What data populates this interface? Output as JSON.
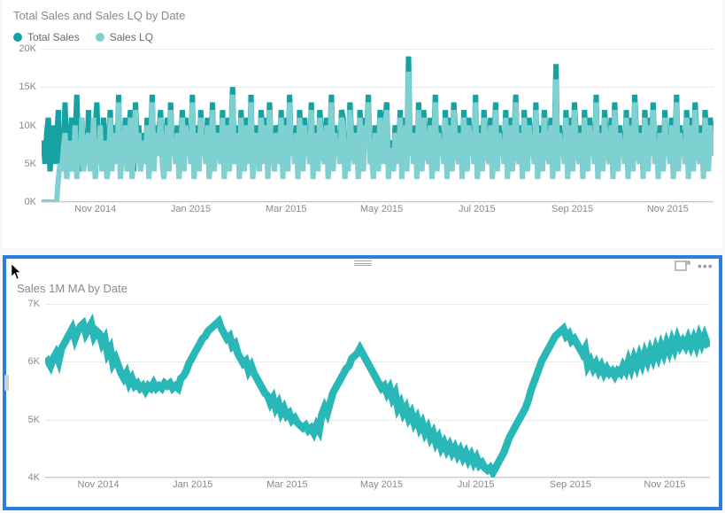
{
  "topChart": {
    "type": "line",
    "title": "Total Sales and Sales LQ by Date",
    "title_fontsize": 13,
    "title_color": "#8a8a88",
    "background_color": "#ffffff",
    "grid_color": "#d7d7d3",
    "axis_color": "#c9c9c6",
    "label_fontsize": 11,
    "label_color": "#8a8a88",
    "legend": [
      {
        "label": "Total Sales",
        "color": "#16a2a2"
      },
      {
        "label": "Sales LQ",
        "color": "#7fd0d0"
      }
    ],
    "xTicks": [
      "Nov 2014",
      "Jan 2015",
      "Mar 2015",
      "May 2015",
      "Jul 2015",
      "Sep 2015",
      "Nov 2015"
    ],
    "xTickPositions": [
      0.08,
      0.222,
      0.364,
      0.506,
      0.648,
      0.79,
      0.932
    ],
    "yTicks": [
      "0K",
      "5K",
      "10K",
      "15K",
      "20K"
    ],
    "ylim": [
      0,
      20
    ],
    "series": [
      {
        "name": "Total Sales",
        "color": "#16a2a2",
        "line_width": 1,
        "values": [
          6,
          8,
          5,
          9,
          11,
          4,
          7,
          10,
          5,
          8,
          12,
          4,
          9,
          6,
          13,
          5,
          7,
          9,
          11,
          5,
          8,
          14,
          6,
          4,
          11,
          7,
          9,
          5,
          12,
          6,
          8,
          4,
          10,
          13,
          5,
          9,
          7,
          11,
          6,
          4,
          8,
          12,
          5,
          9,
          10,
          6,
          14,
          4,
          8,
          7,
          11,
          5,
          9,
          12,
          6,
          4,
          13,
          8,
          10,
          5,
          7,
          9,
          6,
          11,
          4,
          8,
          14,
          5,
          10,
          7,
          9,
          12,
          6,
          4,
          8,
          11,
          5,
          13,
          7,
          9,
          6,
          10,
          4,
          8,
          12,
          5,
          11,
          7,
          9,
          6,
          14,
          4,
          8,
          10,
          5,
          12,
          7,
          9,
          6,
          11,
          4,
          8,
          13,
          5,
          9,
          10,
          7,
          6,
          12,
          4,
          8,
          11,
          5,
          9,
          15,
          6,
          7,
          10,
          4,
          12,
          8,
          5,
          11,
          9,
          6,
          14,
          4,
          7,
          10,
          8,
          5,
          12,
          9,
          6,
          11,
          4,
          13,
          8,
          7,
          5,
          10,
          9,
          6,
          12,
          4,
          11,
          8,
          5,
          14,
          7,
          9,
          6,
          10,
          4,
          12,
          8,
          5,
          11,
          7,
          9,
          6,
          13,
          4,
          8,
          10,
          5,
          12,
          9,
          7,
          6,
          11,
          4,
          8,
          14,
          5,
          10,
          7,
          9,
          6,
          12,
          11,
          4,
          8,
          5,
          13,
          9,
          7,
          6,
          10,
          4,
          12,
          8,
          5,
          11,
          9,
          14,
          6,
          7,
          4,
          10,
          8,
          5,
          12,
          9,
          6,
          11,
          13,
          4,
          8,
          7,
          5,
          10,
          9,
          6,
          12,
          4,
          11,
          8,
          5,
          19,
          7,
          9,
          6,
          10,
          4,
          13,
          8,
          5,
          12,
          9,
          7,
          6,
          11,
          4,
          8,
          14,
          5,
          10,
          7,
          9,
          6,
          12,
          4,
          11,
          8,
          5,
          13,
          9,
          7,
          6,
          10,
          4,
          12,
          8,
          5,
          11,
          7,
          9,
          6,
          14,
          4,
          8,
          10,
          5,
          12,
          9,
          7,
          6,
          11,
          4,
          8,
          13,
          5,
          10,
          7,
          9,
          6,
          12,
          4,
          8,
          11,
          5,
          9,
          14,
          7,
          6,
          10,
          4,
          12,
          8,
          5,
          11,
          7,
          9,
          6,
          13,
          4,
          8,
          10,
          5,
          12,
          9,
          7,
          6,
          11,
          4,
          8,
          18,
          5,
          10,
          7,
          9,
          6,
          12,
          4,
          11,
          8,
          5,
          13,
          9,
          7,
          6,
          10,
          4,
          12,
          8,
          5,
          11,
          7,
          9,
          6,
          14,
          4,
          8,
          10,
          5,
          12,
          9,
          7,
          6,
          11,
          4,
          13,
          8,
          5,
          10,
          7,
          9,
          6,
          12,
          4,
          11,
          8,
          5,
          14,
          9,
          7,
          6,
          10,
          4,
          12,
          8,
          5,
          11,
          7,
          13,
          6,
          9,
          4,
          10,
          8,
          5,
          12,
          7,
          9,
          6,
          11,
          4,
          8,
          14,
          5,
          10,
          7,
          9,
          6,
          12,
          4,
          11,
          8,
          5,
          13,
          9,
          7,
          6,
          10,
          4,
          12,
          8,
          5,
          11,
          9,
          7
        ]
      },
      {
        "name": "Sales LQ",
        "color": "#7fd0d0",
        "line_width": 1,
        "values": [
          0,
          0,
          0,
          0,
          0,
          0,
          0,
          0,
          0,
          0,
          3,
          5,
          4,
          7,
          9,
          3,
          6,
          8,
          4,
          5,
          10,
          3,
          7,
          5,
          11,
          4,
          6,
          8,
          9,
          4,
          6,
          11,
          3,
          7,
          5,
          10,
          4,
          6,
          8,
          3,
          5,
          11,
          4,
          9,
          7,
          5,
          13,
          3,
          6,
          8,
          10,
          4,
          5,
          11,
          3,
          7,
          12,
          5,
          9,
          4,
          6,
          8,
          5,
          10,
          3,
          7,
          13,
          4,
          9,
          6,
          8,
          11,
          5,
          3,
          7,
          10,
          4,
          12,
          6,
          8,
          5,
          9,
          3,
          7,
          11,
          4,
          10,
          6,
          8,
          5,
          13,
          3,
          7,
          9,
          4,
          11,
          6,
          8,
          5,
          10,
          3,
          7,
          12,
          4,
          8,
          9,
          6,
          5,
          11,
          3,
          7,
          10,
          4,
          8,
          14,
          5,
          6,
          9,
          3,
          11,
          7,
          4,
          10,
          8,
          5,
          13,
          3,
          6,
          9,
          7,
          4,
          11,
          8,
          5,
          10,
          3,
          12,
          7,
          6,
          4,
          9,
          8,
          5,
          11,
          3,
          10,
          7,
          4,
          13,
          6,
          8,
          5,
          9,
          3,
          11,
          7,
          4,
          10,
          6,
          8,
          5,
          12,
          3,
          7,
          9,
          4,
          11,
          8,
          6,
          5,
          10,
          3,
          7,
          13,
          4,
          9,
          6,
          8,
          5,
          11,
          10,
          3,
          7,
          4,
          12,
          8,
          6,
          5,
          9,
          3,
          11,
          7,
          4,
          10,
          8,
          13,
          5,
          6,
          3,
          9,
          7,
          4,
          11,
          8,
          5,
          10,
          12,
          3,
          7,
          6,
          4,
          9,
          8,
          5,
          11,
          3,
          10,
          7,
          4,
          17,
          6,
          8,
          5,
          9,
          3,
          12,
          7,
          4,
          11,
          8,
          6,
          5,
          10,
          3,
          7,
          13,
          4,
          9,
          6,
          8,
          5,
          11,
          3,
          10,
          7,
          4,
          12,
          8,
          6,
          5,
          9,
          3,
          11,
          7,
          4,
          10,
          6,
          8,
          5,
          13,
          3,
          7,
          9,
          4,
          11,
          8,
          6,
          5,
          10,
          3,
          7,
          12,
          4,
          9,
          6,
          8,
          5,
          11,
          3,
          7,
          10,
          4,
          8,
          13,
          6,
          5,
          9,
          3,
          11,
          7,
          4,
          10,
          6,
          8,
          5,
          12,
          3,
          7,
          9,
          4,
          11,
          8,
          6,
          5,
          10,
          3,
          7,
          16,
          4,
          9,
          6,
          8,
          5,
          11,
          3,
          10,
          7,
          4,
          12,
          8,
          6,
          5,
          9,
          3,
          11,
          7,
          4,
          10,
          6,
          8,
          5,
          13,
          3,
          7,
          9,
          4,
          11,
          8,
          6,
          5,
          10,
          3,
          12,
          7,
          4,
          9,
          6,
          8,
          5,
          11,
          3,
          10,
          7,
          4,
          13,
          8,
          6,
          5,
          9,
          3,
          11,
          7,
          4,
          10,
          6,
          12,
          5,
          8,
          3,
          9,
          7,
          4,
          11,
          6,
          8,
          5,
          10,
          3,
          7,
          13,
          4,
          9,
          6,
          8,
          5,
          11,
          3,
          10,
          7,
          4,
          12,
          8,
          6,
          5,
          9,
          3,
          11,
          7,
          4,
          10,
          8,
          6
        ]
      }
    ]
  },
  "bottomChart": {
    "type": "line",
    "title": "Sales 1M MA by Date",
    "title_fontsize": 13,
    "title_color": "#8a8a88",
    "background_color": "#ffffff",
    "grid_color": "#d7d7d3",
    "axis_color": "#c9c9c6",
    "label_fontsize": 11,
    "label_color": "#8a8a88",
    "xTicks": [
      "Nov 2014",
      "Jan 2015",
      "Mar 2015",
      "May 2015",
      "Jul 2015",
      "Sep 2015",
      "Nov 2015"
    ],
    "xTickPositions": [
      0.08,
      0.222,
      0.364,
      0.506,
      0.648,
      0.79,
      0.932
    ],
    "yTicks": [
      "4K",
      "5K",
      "6K",
      "7K"
    ],
    "ylim": [
      3.7,
      7.2
    ],
    "series": [
      {
        "name": "Sales 1M MA",
        "color": "#2ab7b7",
        "line_width": 1.4,
        "values": [
          6.0,
          6.05,
          5.95,
          6.1,
          6.2,
          6.05,
          6.3,
          6.4,
          6.5,
          6.6,
          6.7,
          6.5,
          6.65,
          6.75,
          6.8,
          6.6,
          6.7,
          6.8,
          6.55,
          6.65,
          6.6,
          6.4,
          6.5,
          6.2,
          6.3,
          6.0,
          6.1,
          5.95,
          5.8,
          5.7,
          5.8,
          5.6,
          5.7,
          5.55,
          5.6,
          5.5,
          5.55,
          5.45,
          5.55,
          5.5,
          5.6,
          5.5,
          5.55,
          5.5,
          5.6,
          5.55,
          5.6,
          5.5,
          5.55,
          5.5,
          5.7,
          5.75,
          5.85,
          6.0,
          6.1,
          6.2,
          6.3,
          6.4,
          6.5,
          6.55,
          6.65,
          6.7,
          6.75,
          6.8,
          6.85,
          6.7,
          6.6,
          6.5,
          6.55,
          6.35,
          6.4,
          6.2,
          6.1,
          6.0,
          6.05,
          5.85,
          5.95,
          5.8,
          5.7,
          5.6,
          5.5,
          5.4,
          5.35,
          5.2,
          5.3,
          5.1,
          5.2,
          5.0,
          5.1,
          4.95,
          5.0,
          4.85,
          4.9,
          4.8,
          4.75,
          4.7,
          4.75,
          4.65,
          4.7,
          4.6,
          4.75,
          4.65,
          4.98,
          5.12,
          5.0,
          5.2,
          5.4,
          5.5,
          5.6,
          5.7,
          5.8,
          5.9,
          5.95,
          6.1,
          6.15,
          6.2,
          6.3,
          6.2,
          6.1,
          6.0,
          5.9,
          5.8,
          5.7,
          5.6,
          5.5,
          5.55,
          5.4,
          5.5,
          5.3,
          5.4,
          5.1,
          5.2,
          5.0,
          5.1,
          4.9,
          5.0,
          4.8,
          4.9,
          4.7,
          4.8,
          4.6,
          4.7,
          4.5,
          4.6,
          4.4,
          4.5,
          4.3,
          4.4,
          4.25,
          4.35,
          4.2,
          4.3,
          4.15,
          4.25,
          4.1,
          4.2,
          4.05,
          4.15,
          4.0,
          4.1,
          3.95,
          4.0,
          3.9,
          3.85,
          3.9,
          3.8,
          3.9,
          4.0,
          4.1,
          4.2,
          4.35,
          4.5,
          4.6,
          4.7,
          4.8,
          4.9,
          5.0,
          5.1,
          5.25,
          5.45,
          5.6,
          5.75,
          5.9,
          6.05,
          6.15,
          6.25,
          6.35,
          6.45,
          6.55,
          6.6,
          6.65,
          6.7,
          6.55,
          6.6,
          6.45,
          6.5,
          6.4,
          6.3,
          6.2,
          6.3,
          5.95,
          6.05,
          5.9,
          6.0,
          5.85,
          5.95,
          5.8,
          5.9,
          5.8,
          5.85,
          5.75,
          5.85,
          5.8,
          5.95,
          5.85,
          6.05,
          5.9,
          6.1,
          5.95,
          6.15,
          6.0,
          6.2,
          6.05,
          6.25,
          6.1,
          6.3,
          6.15,
          6.35,
          6.2,
          6.4,
          6.25,
          6.45,
          6.3,
          6.5,
          6.35,
          6.45,
          6.35,
          6.5,
          6.35,
          6.5,
          6.35,
          6.55,
          6.4,
          6.55,
          6.4,
          6.43
        ]
      }
    ]
  },
  "selection": {
    "border_color": "#2a7de1",
    "toolbar_icon_color": "#9b9b99",
    "focus_mode_tooltip": "Focus mode",
    "more_tooltip": "More options"
  }
}
